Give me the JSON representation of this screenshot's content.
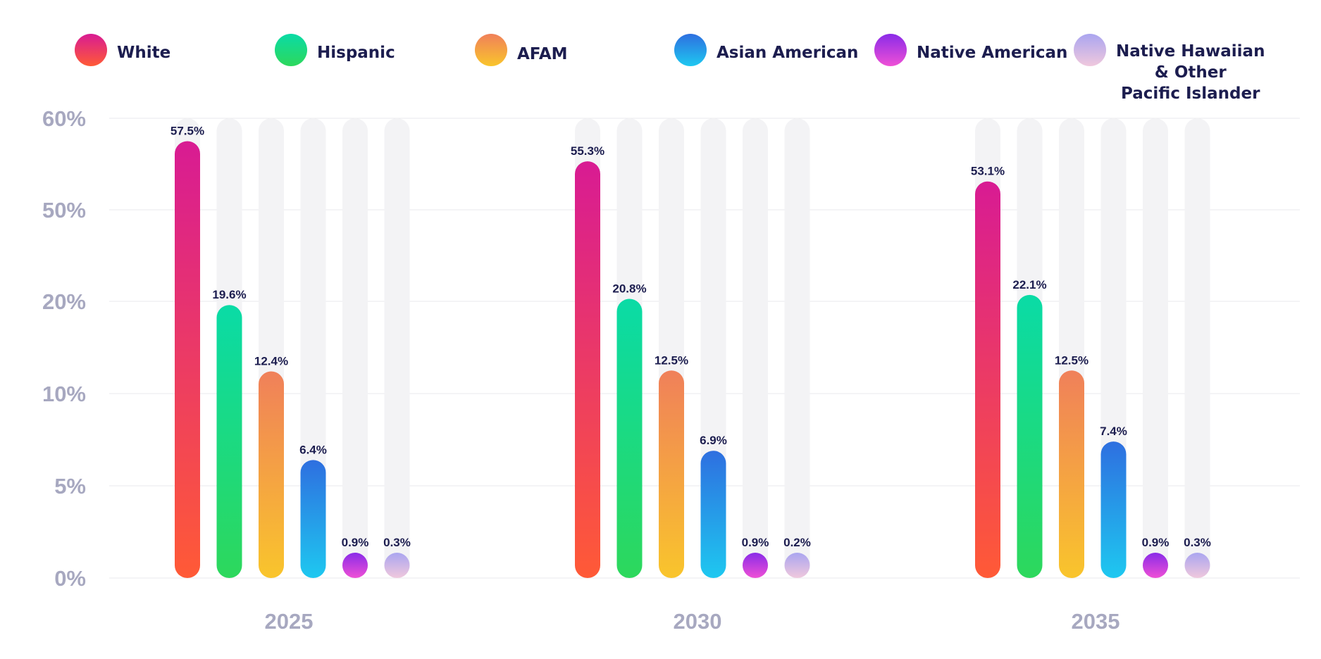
{
  "chart_data": {
    "type": "bar",
    "categories": [
      "2025",
      "2030",
      "2035"
    ],
    "series": [
      {
        "name": "White",
        "values": [
          57.5,
          55.3,
          53.1
        ],
        "value_labels": [
          "57.5%",
          "55.3%",
          "53.1%"
        ],
        "gradient": [
          "#d81b93",
          "#ff5a36"
        ]
      },
      {
        "name": "Hispanic",
        "values": [
          19.6,
          20.8,
          22.1
        ],
        "value_labels": [
          "19.6%",
          "20.8%",
          "22.1%"
        ],
        "gradient": [
          "#0adba6",
          "#2dd85c"
        ]
      },
      {
        "name": "AFAM",
        "values": [
          12.4,
          12.5,
          12.5
        ],
        "value_labels": [
          "12.4%",
          "12.5%",
          "12.5%"
        ],
        "gradient": [
          "#f0805a",
          "#f9c52c"
        ]
      },
      {
        "name": "Asian American",
        "values": [
          6.4,
          6.9,
          7.4
        ],
        "value_labels": [
          "6.4%",
          "6.9%",
          "7.4%"
        ],
        "gradient": [
          "#2e6fe0",
          "#1ec8f0"
        ]
      },
      {
        "name": "Native American",
        "values": [
          0.9,
          0.9,
          0.9
        ],
        "value_labels": [
          "0.9%",
          "0.9%",
          "0.9%"
        ],
        "gradient": [
          "#8a2be8",
          "#ef50d6"
        ]
      },
      {
        "name": "Native Hawaiian & Other Pacific Islander",
        "legend_lines": [
          "Native Hawaiian",
          "& Other",
          "Pacific Islander"
        ],
        "values": [
          0.3,
          0.2,
          0.3
        ],
        "value_labels": [
          "0.3%",
          "0.2%",
          "0.3%"
        ],
        "gradient": [
          "#aaa5f0",
          "#f0c8dd"
        ]
      }
    ],
    "y_ticks": [
      {
        "label": "60%",
        "value": 60
      },
      {
        "label": "50%",
        "value": 50
      },
      {
        "label": "20%",
        "value": 20
      },
      {
        "label": "10%",
        "value": 10
      },
      {
        "label": "5%",
        "value": 5
      },
      {
        "label": "0%",
        "value": 0
      }
    ],
    "y_scale": "piecewise (non-linear tick spacing)",
    "ylim": [
      0,
      60
    ],
    "grid": true,
    "legend_position": "top",
    "track_color": "#f3f3f5",
    "axis_text_color": "#a7a8c0",
    "label_color": "#1c1d4f"
  }
}
